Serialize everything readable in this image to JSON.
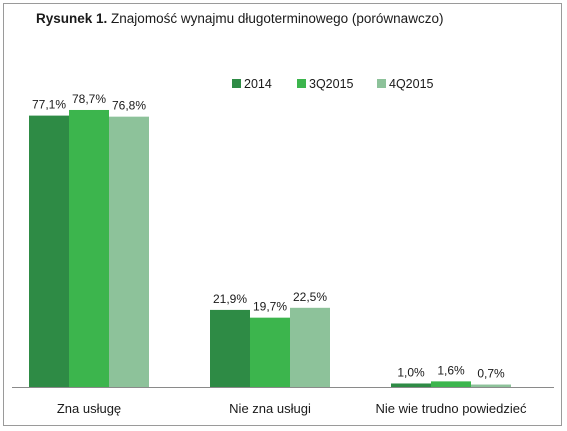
{
  "title": {
    "prefix": "Rysunek 1.",
    "text": " Znajomość wynajmu długoterminowego (porównawczo)"
  },
  "chart_data": {
    "type": "bar",
    "categories": [
      "Zna usługę",
      "Nie zna usługi",
      "Nie wie trudno powiedzieć"
    ],
    "series": [
      {
        "name": "2014",
        "color": "#2e8b45",
        "values": [
          77.1,
          21.9,
          1.0
        ],
        "labels": [
          "77,1%",
          "21,9%",
          "1,0%"
        ]
      },
      {
        "name": "3Q2015",
        "color": "#3cb54d",
        "values": [
          78.7,
          19.7,
          1.6
        ],
        "labels": [
          "78,7%",
          "19,7%",
          "1,6%"
        ]
      },
      {
        "name": "4Q2015",
        "color": "#8dc29a",
        "values": [
          76.8,
          22.5,
          0.7
        ],
        "labels": [
          "76,8%",
          "22,5%",
          "0,7%"
        ]
      }
    ],
    "ylim": [
      0,
      100
    ],
    "grid": false,
    "legend_position": "top-right"
  }
}
